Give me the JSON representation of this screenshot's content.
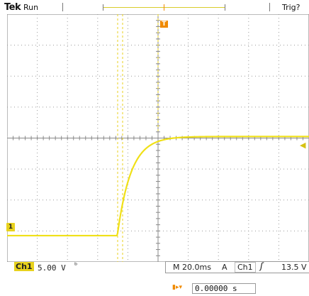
{
  "header": {
    "brand": "Tek",
    "run_state": "Run",
    "trigger_state": "Trig?"
  },
  "markers": {
    "ch1": "1",
    "trigger_position": "T"
  },
  "waveform": {
    "color": "#f0e017",
    "baseline_divisions": -3.15,
    "final_divisions": 0.05,
    "step_start_division": -1.35,
    "time_constant_divisions": 0.45
  },
  "footer": {
    "channel": "Ch1",
    "vertical_scale": "5.00 V",
    "bandwidth_icon": "bandwidth-limit-icon",
    "horizontal_scale": "M 20.0ms",
    "acquire_mode": "A",
    "trigger_source": "Ch1",
    "trigger_slope_icon": "rising-edge-icon",
    "trigger_level": "13.5 V"
  },
  "position": {
    "icon": "trigger-position-icon",
    "value": "0.00000 s"
  },
  "colors": {
    "grid": "#9a9a9a",
    "trace": "#f0e017",
    "channel_badge": "#e8d21d",
    "trigger_marker": "#f08a00"
  }
}
